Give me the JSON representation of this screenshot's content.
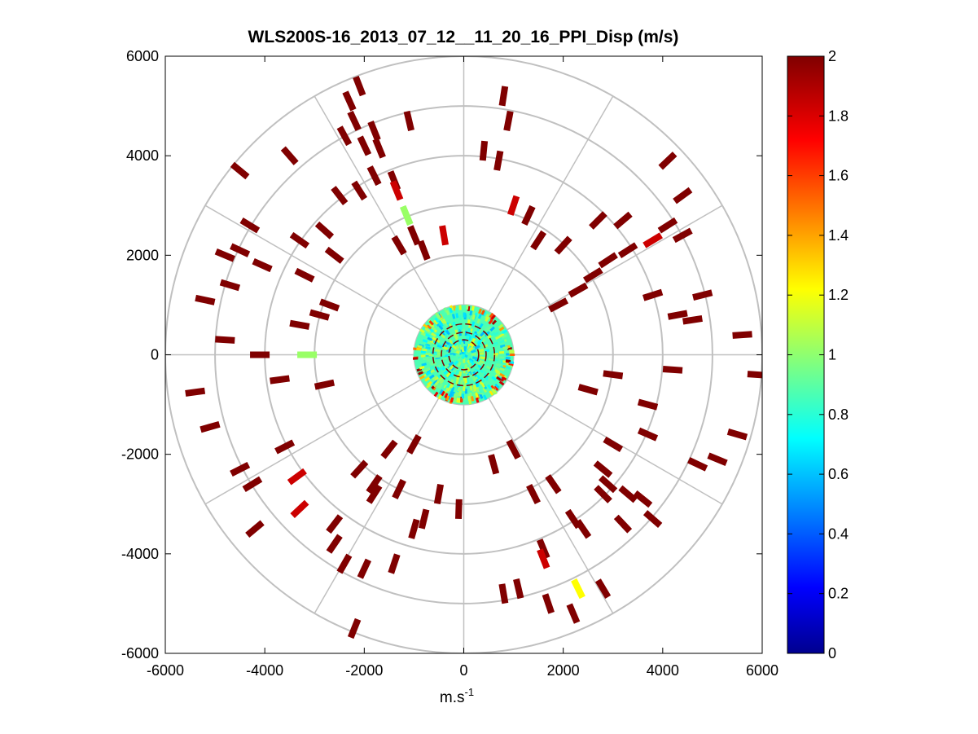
{
  "chart_data": {
    "type": "heatmap",
    "subtype": "polar-ppi",
    "title": "WLS200S-16_2013_07_12__11_20_16_PPI_Disp (m/s)",
    "xlabel": "m.s",
    "xlabel_superscript": "-1",
    "ylabel": "",
    "xlim": [
      -6000,
      6000
    ],
    "ylim": [
      -6000,
      6000
    ],
    "x_ticks": [
      -6000,
      -4000,
      -2000,
      0,
      2000,
      4000,
      6000
    ],
    "y_ticks": [
      -6000,
      -4000,
      -2000,
      0,
      2000,
      4000,
      6000
    ],
    "x_tick_labels": [
      "-6000",
      "-4000",
      "-2000",
      "0",
      "2000",
      "4000",
      "6000"
    ],
    "y_tick_labels": [
      "-6000",
      "-4000",
      "-2000",
      "0",
      "2000",
      "4000",
      "6000"
    ],
    "polar_grid": {
      "ring_radii_m": [
        1000,
        2000,
        3000,
        4000,
        5000,
        6000
      ],
      "spoke_angles_deg": [
        0,
        30,
        60,
        90,
        120,
        150,
        180,
        210,
        240,
        270,
        300,
        330
      ]
    },
    "colorbar": {
      "colormap": "jet",
      "min": 0,
      "max": 2,
      "ticks": [
        0,
        0.2,
        0.4,
        0.6,
        0.8,
        1,
        1.2,
        1.4,
        1.6,
        1.8,
        2
      ],
      "tick_labels": [
        "0",
        "0.2",
        "0.4",
        "0.6",
        "0.8",
        "1",
        "1.2",
        "1.4",
        "1.6",
        "1.8",
        "2"
      ]
    },
    "core_region": {
      "radius_m": 1000,
      "typical_value_range": [
        0.6,
        1.2
      ]
    },
    "cells": [
      {
        "x": -2100,
        "y": 5400,
        "v": 2
      },
      {
        "x": -2300,
        "y": 5100,
        "v": 2
      },
      {
        "x": -2200,
        "y": 4700,
        "v": 2
      },
      {
        "x": -1800,
        "y": 4500,
        "v": 2
      },
      {
        "x": -2400,
        "y": 4400,
        "v": 2
      },
      {
        "x": -2000,
        "y": 4200,
        "v": 2
      },
      {
        "x": -1700,
        "y": 4150,
        "v": 2
      },
      {
        "x": -1400,
        "y": 3500,
        "v": 2
      },
      {
        "x": -1350,
        "y": 3300,
        "v": 1.85
      },
      {
        "x": -1800,
        "y": 3600,
        "v": 2
      },
      {
        "x": -2100,
        "y": 3300,
        "v": 2
      },
      {
        "x": -2500,
        "y": 3200,
        "v": 2
      },
      {
        "x": -1150,
        "y": 2800,
        "v": 1.05
      },
      {
        "x": -1000,
        "y": 2400,
        "v": 2
      },
      {
        "x": -400,
        "y": 2400,
        "v": 1.85
      },
      {
        "x": -1300,
        "y": 2200,
        "v": 2
      },
      {
        "x": -800,
        "y": 2100,
        "v": 2
      },
      {
        "x": -1100,
        "y": 4700,
        "v": 2
      },
      {
        "x": -3500,
        "y": 4000,
        "v": 2
      },
      {
        "x": -4500,
        "y": 3700,
        "v": 2
      },
      {
        "x": -4300,
        "y": 2600,
        "v": 2
      },
      {
        "x": -4500,
        "y": 2100,
        "v": 2
      },
      {
        "x": -4050,
        "y": 1800,
        "v": 2
      },
      {
        "x": -4800,
        "y": 2000,
        "v": 2
      },
      {
        "x": -2800,
        "y": 2500,
        "v": 2
      },
      {
        "x": -3300,
        "y": 2300,
        "v": 2
      },
      {
        "x": -2600,
        "y": 2000,
        "v": 2
      },
      {
        "x": -3200,
        "y": 1600,
        "v": 2
      },
      {
        "x": -4700,
        "y": 1400,
        "v": 2
      },
      {
        "x": -5200,
        "y": 1100,
        "v": 2
      },
      {
        "x": -2700,
        "y": 1000,
        "v": 2
      },
      {
        "x": -2900,
        "y": 800,
        "v": 2
      },
      {
        "x": -3300,
        "y": 600,
        "v": 2
      },
      {
        "x": -4800,
        "y": 300,
        "v": 2
      },
      {
        "x": -4100,
        "y": 0,
        "v": 2
      },
      {
        "x": -3150,
        "y": 0,
        "v": 1.05
      },
      {
        "x": -3700,
        "y": -500,
        "v": 2
      },
      {
        "x": -2800,
        "y": -600,
        "v": 2
      },
      {
        "x": -5400,
        "y": -750,
        "v": 2
      },
      {
        "x": -5100,
        "y": -1450,
        "v": 2
      },
      {
        "x": -3600,
        "y": -1850,
        "v": 2
      },
      {
        "x": -4500,
        "y": -2300,
        "v": 2
      },
      {
        "x": -4250,
        "y": -2600,
        "v": 2
      },
      {
        "x": -3350,
        "y": -2450,
        "v": 1.85
      },
      {
        "x": -3300,
        "y": -3100,
        "v": 1.85
      },
      {
        "x": -4200,
        "y": -3500,
        "v": 2
      },
      {
        "x": -2600,
        "y": -3400,
        "v": 2
      },
      {
        "x": -2600,
        "y": -3800,
        "v": 2
      },
      {
        "x": -2400,
        "y": -4200,
        "v": 2
      },
      {
        "x": -2000,
        "y": -4300,
        "v": 2
      },
      {
        "x": -1400,
        "y": -4200,
        "v": 2
      },
      {
        "x": -2200,
        "y": -5500,
        "v": 2
      },
      {
        "x": -1800,
        "y": -2800,
        "v": 2
      },
      {
        "x": -1300,
        "y": -2700,
        "v": 2
      },
      {
        "x": -1000,
        "y": -3500,
        "v": 2
      },
      {
        "x": -800,
        "y": -3300,
        "v": 2
      },
      {
        "x": -100,
        "y": -3100,
        "v": 2
      },
      {
        "x": -500,
        "y": -2800,
        "v": 2
      },
      {
        "x": -1500,
        "y": -1900,
        "v": 2
      },
      {
        "x": -1000,
        "y": -1800,
        "v": 2
      },
      {
        "x": -2100,
        "y": -2300,
        "v": 2
      },
      {
        "x": -1800,
        "y": -2600,
        "v": 2
      },
      {
        "x": 800,
        "y": 5200,
        "v": 2
      },
      {
        "x": 900,
        "y": 4700,
        "v": 2
      },
      {
        "x": 400,
        "y": 4100,
        "v": 2
      },
      {
        "x": 700,
        "y": 3900,
        "v": 2
      },
      {
        "x": 1000,
        "y": 3000,
        "v": 1.85
      },
      {
        "x": 1300,
        "y": 2800,
        "v": 2
      },
      {
        "x": 1500,
        "y": 2300,
        "v": 2
      },
      {
        "x": 2000,
        "y": 2200,
        "v": 2
      },
      {
        "x": 2700,
        "y": 2700,
        "v": 2
      },
      {
        "x": 3200,
        "y": 2700,
        "v": 2
      },
      {
        "x": 3800,
        "y": 2300,
        "v": 1.85
      },
      {
        "x": 4100,
        "y": 2600,
        "v": 2
      },
      {
        "x": 4400,
        "y": 2400,
        "v": 2
      },
      {
        "x": 4400,
        "y": 3200,
        "v": 2
      },
      {
        "x": 4100,
        "y": 3900,
        "v": 2
      },
      {
        "x": 2600,
        "y": 1600,
        "v": 2
      },
      {
        "x": 3300,
        "y": 2100,
        "v": 2
      },
      {
        "x": 2900,
        "y": 1900,
        "v": 2
      },
      {
        "x": 2300,
        "y": 1300,
        "v": 2
      },
      {
        "x": 1900,
        "y": 1000,
        "v": 2
      },
      {
        "x": 3800,
        "y": 1200,
        "v": 2
      },
      {
        "x": 4800,
        "y": 1200,
        "v": 2
      },
      {
        "x": 4600,
        "y": 700,
        "v": 2
      },
      {
        "x": 4300,
        "y": 800,
        "v": 2
      },
      {
        "x": 5600,
        "y": 400,
        "v": 2
      },
      {
        "x": 5900,
        "y": -400,
        "v": 2
      },
      {
        "x": 4200,
        "y": -300,
        "v": 2
      },
      {
        "x": 3000,
        "y": -400,
        "v": 2
      },
      {
        "x": 2500,
        "y": -700,
        "v": 2
      },
      {
        "x": 3700,
        "y": -1000,
        "v": 2
      },
      {
        "x": 5500,
        "y": -1600,
        "v": 2
      },
      {
        "x": 5100,
        "y": -2100,
        "v": 2
      },
      {
        "x": 4700,
        "y": -2200,
        "v": 2
      },
      {
        "x": 3700,
        "y": -1600,
        "v": 2
      },
      {
        "x": 3000,
        "y": -1800,
        "v": 2
      },
      {
        "x": 2800,
        "y": -2300,
        "v": 2
      },
      {
        "x": 2900,
        "y": -2600,
        "v": 2
      },
      {
        "x": 2800,
        "y": -2800,
        "v": 2
      },
      {
        "x": 3300,
        "y": -2800,
        "v": 2
      },
      {
        "x": 3600,
        "y": -2900,
        "v": 2
      },
      {
        "x": 3800,
        "y": -3300,
        "v": 2
      },
      {
        "x": 3200,
        "y": -3400,
        "v": 2
      },
      {
        "x": 2400,
        "y": -3500,
        "v": 2
      },
      {
        "x": 2200,
        "y": -3300,
        "v": 2
      },
      {
        "x": 1400,
        "y": -2800,
        "v": 2
      },
      {
        "x": 1800,
        "y": -2600,
        "v": 2
      },
      {
        "x": 600,
        "y": -2200,
        "v": 2
      },
      {
        "x": 1000,
        "y": -1900,
        "v": 2
      },
      {
        "x": 1600,
        "y": -3900,
        "v": 2
      },
      {
        "x": 1600,
        "y": -4100,
        "v": 1.85
      },
      {
        "x": 2300,
        "y": -4700,
        "v": 1.25
      },
      {
        "x": 2800,
        "y": -4700,
        "v": 2
      },
      {
        "x": 1700,
        "y": -5000,
        "v": 2
      },
      {
        "x": 2200,
        "y": -5200,
        "v": 2
      },
      {
        "x": 1100,
        "y": -4700,
        "v": 2
      },
      {
        "x": 800,
        "y": -4800,
        "v": 2
      }
    ]
  }
}
